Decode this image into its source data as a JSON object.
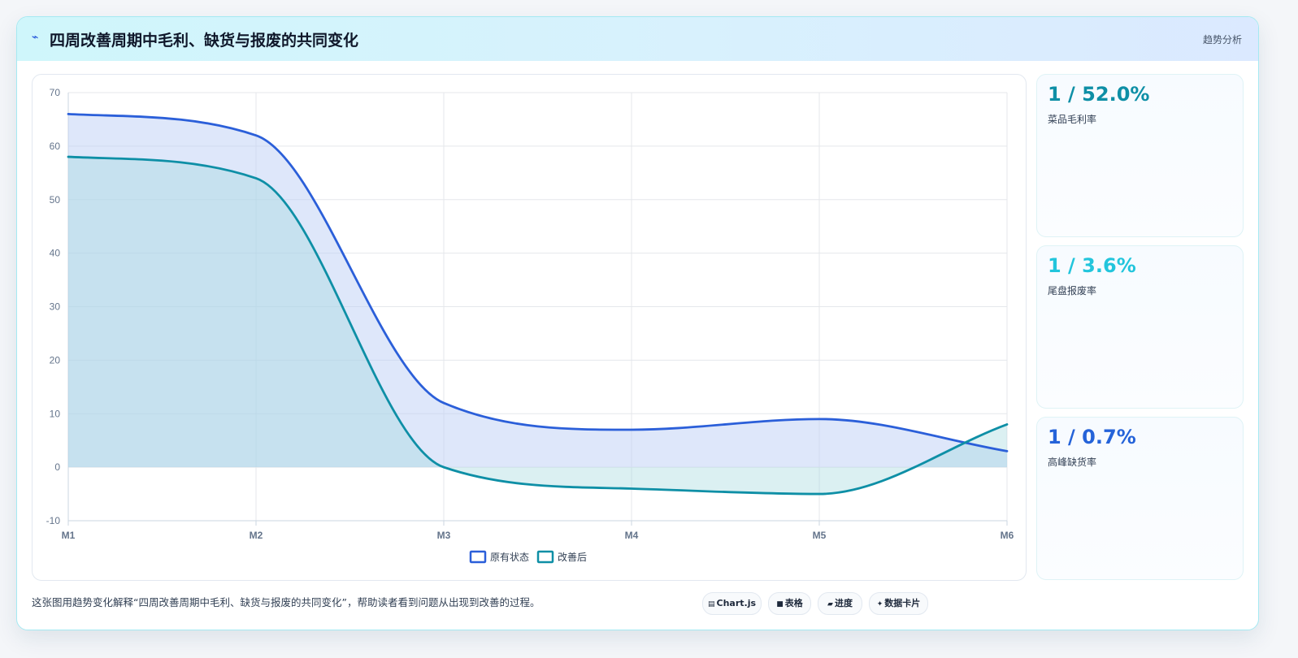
{
  "header": {
    "icon": "lightning-icon",
    "icon_glyph": "⌁",
    "title": "四周改善周期中毛利、缺货与报废的共同变化",
    "tag": "趋势分析"
  },
  "kpis": [
    {
      "value": "1 / 52.0%",
      "label": "菜品毛利率",
      "color": "#0e8fa6"
    },
    {
      "value": "1 / 3.6%",
      "label": "尾盘报废率",
      "color": "#22c5dc"
    },
    {
      "value": "1 / 0.7%",
      "label": "高峰缺货率",
      "color": "#2563d9"
    }
  ],
  "footer": {
    "description": "这张图用趋势变化解释“四周改善周期中毛利、缺货与报废的共同变化”，帮助读者看到问题从出现到改善的过程。",
    "pills": [
      {
        "icon": "chart-icon",
        "glyph": "▤",
        "label": "Chart.js"
      },
      {
        "icon": "table-icon",
        "glyph": "■",
        "label": "表格"
      },
      {
        "icon": "progress-icon",
        "glyph": "▰",
        "label": "进度"
      },
      {
        "icon": "card-icon",
        "glyph": "✦",
        "label": "数据卡片"
      }
    ]
  },
  "chart_data": {
    "type": "line",
    "categories": [
      "M1",
      "M2",
      "M3",
      "M4",
      "M5",
      "M6"
    ],
    "ylim": [
      -10,
      70
    ],
    "yticks": [
      -10,
      0,
      10,
      20,
      30,
      40,
      50,
      60,
      70
    ],
    "grid": true,
    "legend_position": "bottom",
    "series": [
      {
        "name": "原有状态",
        "values": [
          66,
          62,
          12,
          7,
          9,
          3
        ],
        "color": "#2b5fd9",
        "fill": "rgba(190,208,245,0.50)"
      },
      {
        "name": "改善后",
        "values": [
          58,
          54,
          0,
          -4,
          -5,
          8
        ],
        "color": "#0e8fa6",
        "fill": "rgba(160,215,220,0.38)"
      }
    ]
  }
}
